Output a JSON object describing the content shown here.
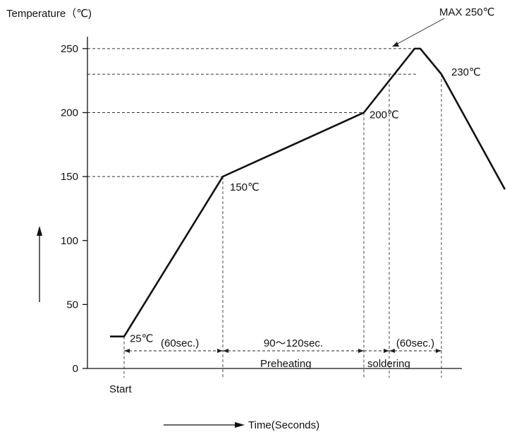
{
  "chart_data": {
    "type": "line",
    "ylabel": "Temperature（℃)",
    "xlabel": "Time(Seconds)",
    "ylim": [
      0,
      270
    ],
    "yticks": [
      0,
      50,
      100,
      150,
      200,
      250
    ],
    "grid": false,
    "series": [
      {
        "points": [
          {
            "x": -20,
            "y": 25
          },
          {
            "x": 0,
            "y": 25
          },
          {
            "x": 140,
            "y": 150
          },
          {
            "x": 340,
            "y": 200
          },
          {
            "x": 412,
            "y": 250
          },
          {
            "x": 420,
            "y": 250
          },
          {
            "x": 450,
            "y": 230
          },
          {
            "x": 540,
            "y": 140
          }
        ]
      }
    ],
    "guides": [
      {
        "x": 0,
        "y": 25,
        "label": "25℃",
        "label_pos": "right"
      },
      {
        "x": 140,
        "y": 150,
        "label": "150℃",
        "label_pos": "below-right"
      },
      {
        "x": 340,
        "y": 200,
        "label": "200℃",
        "label_pos": "right"
      },
      {
        "x": 450,
        "y": 230,
        "label": "230℃",
        "label_pos": "right"
      },
      {
        "x": 412,
        "y": 250,
        "label": "MAX 250℃",
        "label_pos": "callout-top-right"
      }
    ],
    "extra_vertical_guides": [
      {
        "x": 376
      }
    ],
    "intervals": [
      {
        "from": 0,
        "to": 140,
        "label": "(60sec.)"
      },
      {
        "from": 140,
        "to": 340,
        "label": "90～120sec."
      },
      {
        "from": 376,
        "to": 450,
        "label": "(60sec.)"
      }
    ],
    "phase_labels": [
      "Preheating",
      "soldering"
    ],
    "start_label": "Start",
    "line_color": "#111111",
    "guide_color": "#333333"
  }
}
